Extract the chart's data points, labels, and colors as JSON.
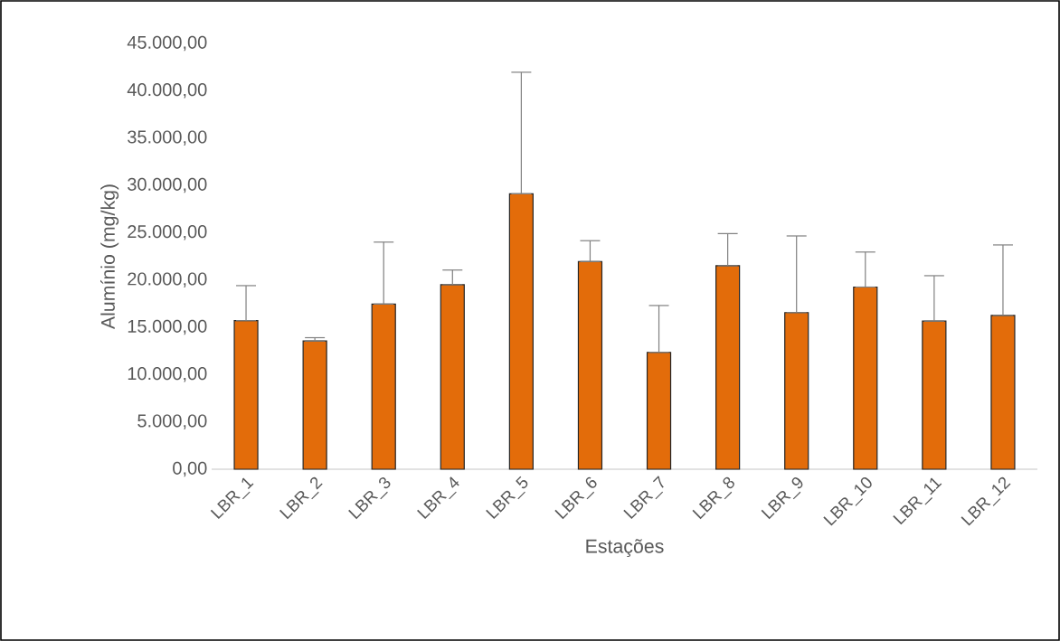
{
  "chart_data": {
    "type": "bar",
    "xlabel": "Estações",
    "ylabel": "Alumínio (mg/kg)",
    "categories": [
      "LBR_1",
      "LBR_2",
      "LBR_3",
      "LBR_4",
      "LBR_5",
      "LBR_6",
      "LBR_7",
      "LBR_8",
      "LBR_9",
      "LBR_10",
      "LBR_11",
      "LBR_12"
    ],
    "values": [
      15700,
      13550,
      17450,
      19500,
      29100,
      21950,
      12350,
      21500,
      16550,
      19250,
      15650,
      16250
    ],
    "errors": [
      [
        15700,
        19400
      ],
      [
        13550,
        13900
      ],
      [
        17450,
        24000
      ],
      [
        19500,
        21050
      ],
      [
        29100,
        41950
      ],
      [
        21950,
        24150
      ],
      [
        12350,
        17300
      ],
      [
        21500,
        24900
      ],
      [
        16550,
        24650
      ],
      [
        19250,
        22950
      ],
      [
        15650,
        20450
      ],
      [
        16250,
        23700
      ]
    ],
    "color": "#e36c0a",
    "ylim": [
      0,
      45000
    ],
    "yticks": [
      {
        "value": 0,
        "label": "0,00"
      },
      {
        "value": 5000,
        "label": "5.000,00"
      },
      {
        "value": 10000,
        "label": "10.000,00"
      },
      {
        "value": 15000,
        "label": "15.000,00"
      },
      {
        "value": 20000,
        "label": "20.000,00"
      },
      {
        "value": 25000,
        "label": "25.000,00"
      },
      {
        "value": 30000,
        "label": "30.000,00"
      },
      {
        "value": 35000,
        "label": "35.000,00"
      },
      {
        "value": 40000,
        "label": "40.000,00"
      },
      {
        "value": 45000,
        "label": "45.000,00"
      }
    ],
    "grid": false
  }
}
